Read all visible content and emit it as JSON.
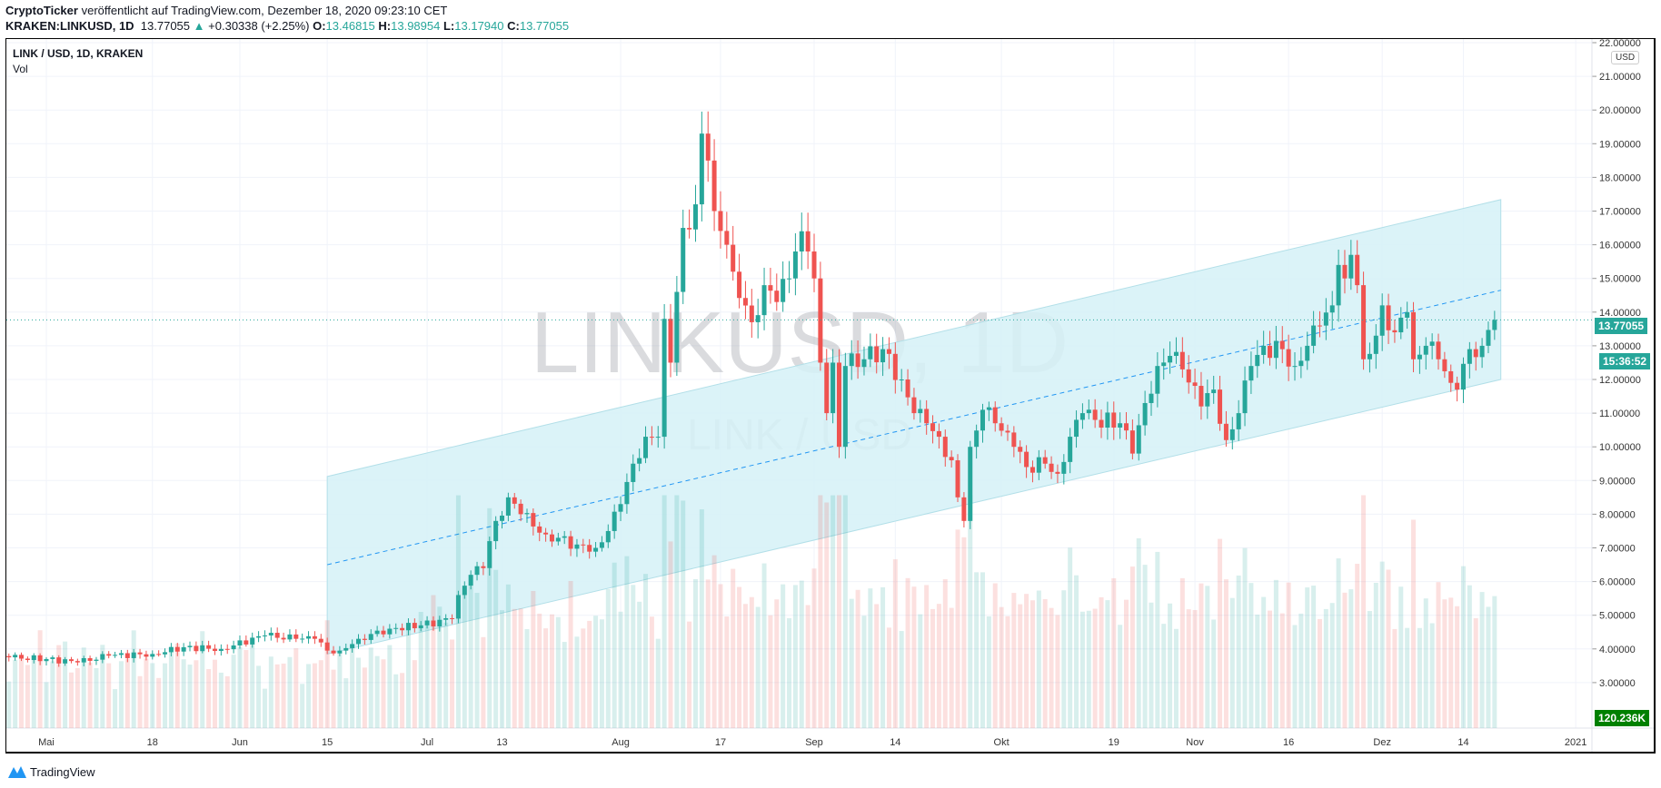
{
  "header": {
    "author": "CryptoTicker",
    "published": "veröffentlicht auf TradingView.com, Dezember 18, 2020 09:23:10 CET",
    "symbol": "KRAKEN:LINKUSD, 1D",
    "last": "13.77055",
    "change": "+0.30338 (+2.25%)",
    "o_label": "O:",
    "o": "13.46815",
    "h_label": "H:",
    "h": "13.98954",
    "l_label": "L:",
    "l": "13.17940",
    "c_label": "C:",
    "c": "13.77055"
  },
  "legend": {
    "title": "LINK / USD, 1D, KRAKEN",
    "vol": "Vol"
  },
  "watermark": {
    "main": "LINKUSD, 1D",
    "sub": "LINK / USD"
  },
  "price_axis": {
    "currency": "USD",
    "current_price": "13.77055",
    "countdown": "15:36:52",
    "volume_label": "120.236K"
  },
  "footer": {
    "brand": "TradingView"
  },
  "colors": {
    "up": "#26a69a",
    "down": "#ef5350",
    "channel_fill": "#d5f1f7",
    "channel_mid": "#2196f3",
    "volume_tag": "#008000"
  },
  "chart_data": {
    "type": "candlestick",
    "x_unit": "days since 2020-05-01",
    "ylim": [
      2.5,
      22
    ],
    "y_ticks": [
      "3.00000",
      "4.00000",
      "5.00000",
      "6.00000",
      "7.00000",
      "8.00000",
      "9.00000",
      "10.00000",
      "11.00000",
      "12.00000",
      "13.00000",
      "14.00000",
      "15.00000",
      "16.00000",
      "17.00000",
      "18.00000",
      "19.00000",
      "20.00000",
      "21.00000",
      "22.00000"
    ],
    "x_ticks": [
      {
        "label": "Mai",
        "day": 0
      },
      {
        "label": "18",
        "day": 17
      },
      {
        "label": "Jun",
        "day": 31
      },
      {
        "label": "15",
        "day": 45
      },
      {
        "label": "Jul",
        "day": 61
      },
      {
        "label": "13",
        "day": 73
      },
      {
        "label": "Aug",
        "day": 92
      },
      {
        "label": "17",
        "day": 108
      },
      {
        "label": "Sep",
        "day": 123
      },
      {
        "label": "14",
        "day": 136
      },
      {
        "label": "Okt",
        "day": 153
      },
      {
        "label": "19",
        "day": 171
      },
      {
        "label": "Nov",
        "day": 184
      },
      {
        "label": "16",
        "day": 199
      },
      {
        "label": "Dez",
        "day": 214
      },
      {
        "label": "14",
        "day": 227
      },
      {
        "label": "2021",
        "day": 245
      }
    ],
    "close_anchors": [
      [
        -6,
        3.75
      ],
      [
        0,
        3.7
      ],
      [
        5,
        3.6
      ],
      [
        10,
        3.8
      ],
      [
        17,
        3.85
      ],
      [
        22,
        4.05
      ],
      [
        28,
        4.0
      ],
      [
        35,
        4.4
      ],
      [
        40,
        4.3
      ],
      [
        43,
        4.3
      ],
      [
        45,
        3.95
      ],
      [
        47,
        3.95
      ],
      [
        50,
        4.3
      ],
      [
        55,
        4.6
      ],
      [
        60,
        4.7
      ],
      [
        65,
        4.9
      ],
      [
        66,
        5.6
      ],
      [
        68,
        6.2
      ],
      [
        70,
        6.4
      ],
      [
        71,
        7.2
      ],
      [
        72,
        7.8
      ],
      [
        74,
        8.5
      ],
      [
        76,
        8.0
      ],
      [
        80,
        7.4
      ],
      [
        85,
        7.1
      ],
      [
        88,
        7.0
      ],
      [
        90,
        7.5
      ],
      [
        92,
        8.3
      ],
      [
        94,
        9.5
      ],
      [
        96,
        10.3
      ],
      [
        98,
        10.3
      ],
      [
        99,
        13.8
      ],
      [
        100,
        12.5
      ],
      [
        101,
        14.6
      ],
      [
        102,
        16.5
      ],
      [
        104,
        17.2
      ],
      [
        105,
        19.3
      ],
      [
        106,
        18.5
      ],
      [
        107,
        17.0
      ],
      [
        109,
        16.0
      ],
      [
        110,
        15.2
      ],
      [
        113,
        13.7
      ],
      [
        115,
        14.8
      ],
      [
        117,
        14.3
      ],
      [
        119,
        15.0
      ],
      [
        120,
        15.8
      ],
      [
        121,
        16.4
      ],
      [
        122,
        15.8
      ],
      [
        123,
        15.0
      ],
      [
        124,
        12.5
      ],
      [
        125,
        11.0
      ],
      [
        126,
        12.5
      ],
      [
        127,
        10.0
      ],
      [
        128,
        12.4
      ],
      [
        131,
        12.6
      ],
      [
        134,
        12.9
      ],
      [
        137,
        12.0
      ],
      [
        139,
        11.0
      ],
      [
        141,
        10.7
      ],
      [
        143,
        10.3
      ],
      [
        145,
        9.6
      ],
      [
        146,
        8.5
      ],
      [
        147,
        7.8
      ],
      [
        148,
        10.0
      ],
      [
        150,
        11.1
      ],
      [
        152,
        10.7
      ],
      [
        155,
        10.0
      ],
      [
        157,
        9.4
      ],
      [
        160,
        9.5
      ],
      [
        162,
        9.2
      ],
      [
        164,
        10.3
      ],
      [
        166,
        11.0
      ],
      [
        168,
        10.8
      ],
      [
        172,
        10.7
      ],
      [
        174,
        9.8
      ],
      [
        176,
        11.3
      ],
      [
        178,
        12.4
      ],
      [
        180,
        12.7
      ],
      [
        182,
        12.3
      ],
      [
        185,
        11.2
      ],
      [
        187,
        11.7
      ],
      [
        189,
        10.2
      ],
      [
        191,
        11.0
      ],
      [
        193,
        12.4
      ],
      [
        195,
        13.0
      ],
      [
        198,
        12.9
      ],
      [
        200,
        12.4
      ],
      [
        202,
        13.0
      ],
      [
        204,
        13.6
      ],
      [
        206,
        14.2
      ],
      [
        207,
        15.4
      ],
      [
        208,
        15.0
      ],
      [
        209,
        15.7
      ],
      [
        210,
        14.8
      ],
      [
        211,
        12.6
      ],
      [
        213,
        13.3
      ],
      [
        214,
        14.2
      ],
      [
        216,
        13.4
      ],
      [
        218,
        14.0
      ],
      [
        219,
        12.6
      ],
      [
        221,
        13.0
      ],
      [
        223,
        12.6
      ],
      [
        225,
        11.9
      ],
      [
        226,
        11.7
      ],
      [
        228,
        12.9
      ],
      [
        230,
        13.0
      ],
      [
        231,
        13.47
      ],
      [
        232,
        13.77055
      ]
    ],
    "regression_channel": {
      "start_day": 45,
      "end_day": 233,
      "upper": [
        9.12,
        17.34
      ],
      "mid": [
        6.5,
        14.65
      ],
      "lower": [
        3.85,
        12.0
      ]
    },
    "current_price": 13.77055
  }
}
